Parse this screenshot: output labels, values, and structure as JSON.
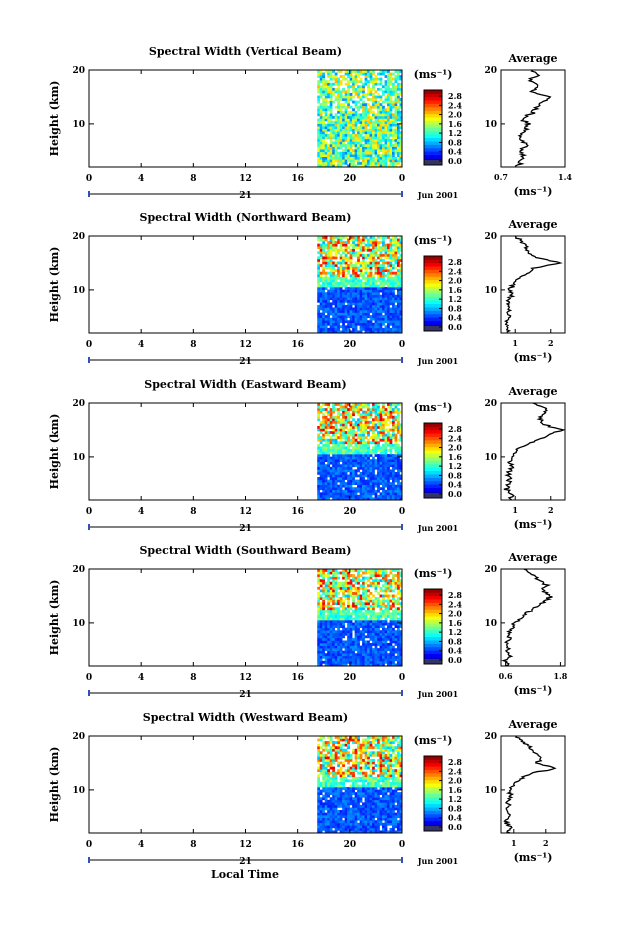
{
  "chart_data": {
    "type": "heatmap",
    "panel_xlabel": "Local Time",
    "date_label": "Jun 2001",
    "day_label": "21",
    "x_ticks": [
      "0",
      "4",
      "8",
      "12",
      "16",
      "20",
      "0"
    ],
    "xlim": [
      0,
      24
    ],
    "data_time_range": [
      17.5,
      24
    ],
    "ylabel": "Height (km)",
    "y_ticks": [
      "10",
      "20"
    ],
    "ylim": [
      2,
      20
    ],
    "colorbar_unit": "(ms⁻¹)",
    "colorbar_ticks": [
      "0.0",
      "0.4",
      "0.8",
      "1.2",
      "1.6",
      "2.0",
      "2.4",
      "2.8"
    ],
    "colorbar_range": [
      0,
      3.0
    ],
    "average_title": "Average",
    "average_unit": "(ms⁻¹)",
    "panels": [
      {
        "title": "Spectral Width (Vertical Beam)",
        "avg_ticks": [
          "0.7",
          "1.4"
        ],
        "avg_range": [
          0.7,
          1.4
        ],
        "avg_profile": [
          [
            2,
            0.88
          ],
          [
            3,
            0.92
          ],
          [
            4,
            0.95
          ],
          [
            5,
            0.9
          ],
          [
            6,
            0.97
          ],
          [
            7,
            0.93
          ],
          [
            8,
            0.9
          ],
          [
            9,
            0.98
          ],
          [
            10,
            1.0
          ],
          [
            11,
            0.92
          ],
          [
            12,
            1.05
          ],
          [
            13,
            1.08
          ],
          [
            14,
            1.15
          ],
          [
            15,
            1.22
          ],
          [
            16,
            1.05
          ],
          [
            17,
            1.12
          ],
          [
            18,
            1.0
          ],
          [
            19,
            1.1
          ],
          [
            20,
            1.05
          ]
        ]
      },
      {
        "title": "Spectral Width (Northward Beam)",
        "avg_ticks": [
          "1",
          "2"
        ],
        "avg_range": [
          0.6,
          2.4
        ],
        "avg_profile": [
          [
            2,
            0.8
          ],
          [
            3,
            0.85
          ],
          [
            4,
            0.75
          ],
          [
            5,
            0.9
          ],
          [
            6,
            0.8
          ],
          [
            7,
            0.85
          ],
          [
            8,
            0.8
          ],
          [
            9,
            0.9
          ],
          [
            10,
            0.85
          ],
          [
            11,
            0.95
          ],
          [
            12,
            1.1
          ],
          [
            13,
            1.3
          ],
          [
            14,
            1.5
          ],
          [
            15,
            2.3
          ],
          [
            16,
            1.6
          ],
          [
            17,
            1.4
          ],
          [
            18,
            1.3
          ],
          [
            19,
            1.2
          ],
          [
            20,
            1.0
          ]
        ]
      },
      {
        "title": "Spectral Width (Eastward Beam)",
        "avg_ticks": [
          "1",
          "2"
        ],
        "avg_range": [
          0.6,
          2.4
        ],
        "avg_profile": [
          [
            2,
            0.85
          ],
          [
            3,
            0.9
          ],
          [
            4,
            0.75
          ],
          [
            5,
            0.8
          ],
          [
            6,
            0.85
          ],
          [
            7,
            0.8
          ],
          [
            8,
            0.9
          ],
          [
            9,
            0.85
          ],
          [
            10,
            0.9
          ],
          [
            11,
            1.0
          ],
          [
            12,
            1.2
          ],
          [
            13,
            1.6
          ],
          [
            14,
            1.9
          ],
          [
            15,
            2.3
          ],
          [
            16,
            1.8
          ],
          [
            17,
            1.7
          ],
          [
            18,
            1.8
          ],
          [
            19,
            1.9
          ],
          [
            20,
            1.5
          ]
        ]
      },
      {
        "title": "Spectral Width (Southward Beam)",
        "avg_ticks": [
          "0.6",
          "1.8"
        ],
        "avg_range": [
          0.5,
          1.9
        ],
        "avg_profile": [
          [
            2,
            0.65
          ],
          [
            3,
            0.6
          ],
          [
            4,
            0.7
          ],
          [
            5,
            0.65
          ],
          [
            6,
            0.6
          ],
          [
            7,
            0.7
          ],
          [
            8,
            0.65
          ],
          [
            9,
            0.75
          ],
          [
            10,
            0.8
          ],
          [
            11,
            0.95
          ],
          [
            12,
            1.1
          ],
          [
            13,
            1.3
          ],
          [
            14,
            1.45
          ],
          [
            15,
            1.6
          ],
          [
            16,
            1.4
          ],
          [
            17,
            1.5
          ],
          [
            18,
            1.3
          ],
          [
            19,
            1.2
          ],
          [
            20,
            1.0
          ]
        ]
      },
      {
        "title": "Spectral Width (Westward Beam)",
        "avg_ticks": [
          "1",
          "2"
        ],
        "avg_range": [
          0.6,
          2.6
        ],
        "avg_profile": [
          [
            2,
            0.85
          ],
          [
            3,
            0.9
          ],
          [
            4,
            0.75
          ],
          [
            5,
            0.85
          ],
          [
            6,
            0.8
          ],
          [
            7,
            0.85
          ],
          [
            8,
            0.8
          ],
          [
            9,
            0.9
          ],
          [
            10,
            0.85
          ],
          [
            11,
            1.0
          ],
          [
            12,
            1.2
          ],
          [
            13,
            1.5
          ],
          [
            14,
            2.3
          ],
          [
            15,
            1.7
          ],
          [
            16,
            1.9
          ],
          [
            17,
            1.6
          ],
          [
            18,
            1.5
          ],
          [
            19,
            1.3
          ],
          [
            20,
            1.1
          ]
        ]
      }
    ]
  }
}
